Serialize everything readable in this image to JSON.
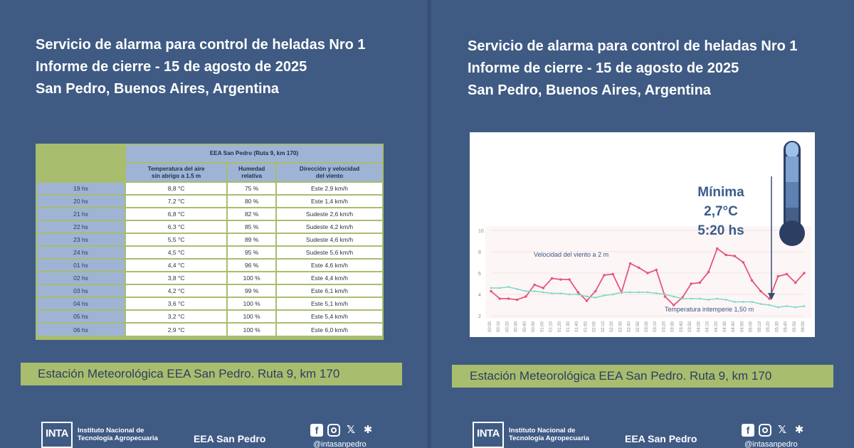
{
  "title_lines": [
    "Servicio de alarma para control de heladas Nro 1",
    "Informe de cierre - 15 de agosto de 2025",
    "San Pedro, Buenos Aires, Argentina"
  ],
  "table": {
    "group_header": "EEA San Pedro (Ruta 9, km 170)",
    "columns": [
      "Temperatura del aire sin abrigo a 1.5 m",
      "Humedad relativa",
      "Dirección y velocidad del viento"
    ],
    "col_line1": [
      "Temperatura del aire",
      "Humedad",
      "Dirección y velocidad"
    ],
    "col_line2": [
      "sin abrigo a 1.5 m",
      "relativa",
      "del viento"
    ],
    "rows": [
      {
        "hour": "19 hs",
        "temp": "8,8 °C",
        "hum": "75 %",
        "wind": "Este 2,9 km/h"
      },
      {
        "hour": "20 hs",
        "temp": "7,2 °C",
        "hum": "80 %",
        "wind": "Este 1,4 km/h"
      },
      {
        "hour": "21 hs",
        "temp": "6,8 °C",
        "hum": "82 %",
        "wind": "Sudeste 2,6 km/h"
      },
      {
        "hour": "22 hs",
        "temp": "6,3 °C",
        "hum": "85 %",
        "wind": "Sudeste 4,2 km/h"
      },
      {
        "hour": "23 hs",
        "temp": "5,5 °C",
        "hum": "89 %",
        "wind": "Sudeste 4,6 km/h"
      },
      {
        "hour": "24 hs",
        "temp": "4,5 °C",
        "hum": "95 %",
        "wind": "Sudeste 5,6 km/h"
      },
      {
        "hour": "01 hs",
        "temp": "4,4 °C",
        "hum": "96 %",
        "wind": "Este 4,6 km/h"
      },
      {
        "hour": "02 hs",
        "temp": "3,8 °C",
        "hum": "100 %",
        "wind": "Este 4,4 km/h"
      },
      {
        "hour": "03 hs",
        "temp": "4,2 °C",
        "hum": "99 %",
        "wind": "Este 6,1 km/h"
      },
      {
        "hour": "04 hs",
        "temp": "3,6 °C",
        "hum": "100 %",
        "wind": "Este 5,1 km/h"
      },
      {
        "hour": "05 hs",
        "temp": "3,2 °C",
        "hum": "100 %",
        "wind": "Este 5,4 km/h"
      },
      {
        "hour": "06 hs",
        "temp": "2,9 °C",
        "hum": "100 %",
        "wind": "Este 6,0 km/h"
      }
    ]
  },
  "station_label": "Estación Meteorológica EEA San Pedro. Ruta 9, km 170",
  "footer": {
    "institute_line1": "Instituto Nacional de",
    "institute_line2": "Tecnología Agropecuaria",
    "logo_text": "INTA",
    "eea": "EEA San Pedro",
    "handle": "@intasanpedro",
    "icons": [
      "facebook-icon",
      "instagram-icon",
      "x-icon",
      "snowflake-icon"
    ]
  },
  "chart_data": {
    "type": "line",
    "x": [
      "00:00",
      "00:10",
      "00:20",
      "00:30",
      "00:40",
      "00:50",
      "01:00",
      "01:10",
      "01:20",
      "01:30",
      "01:40",
      "01:50",
      "02:00",
      "02:10",
      "02:20",
      "02:30",
      "02:40",
      "02:50",
      "03:00",
      "03:10",
      "03:20",
      "03:30",
      "03:40",
      "03:50",
      "04:00",
      "04:10",
      "04:20",
      "04:30",
      "04:40",
      "04:50",
      "05:00",
      "05:10",
      "05:20",
      "05:30",
      "05:40",
      "05:50",
      "06:00"
    ],
    "series": [
      {
        "name": "Velocidad del viento a 2 m",
        "color": "#e8557a",
        "values": [
          4.3,
          3.6,
          3.6,
          3.5,
          3.8,
          4.9,
          4.6,
          5.5,
          5.4,
          5.4,
          4.2,
          3.4,
          4.3,
          5.8,
          5.9,
          4.2,
          6.9,
          6.5,
          6.0,
          6.3,
          3.8,
          3.0,
          3.7,
          5.0,
          5.1,
          6.1,
          8.3,
          7.7,
          7.6,
          7.0,
          5.3,
          4.3,
          3.6,
          5.7,
          5.9,
          5.1,
          6.0
        ]
      },
      {
        "name": "Temperatura intemperie 1,50 m",
        "color": "#7fd9c8",
        "values": [
          4.6,
          4.6,
          4.7,
          4.5,
          4.3,
          4.3,
          4.2,
          4.1,
          4.1,
          4.0,
          4.0,
          3.8,
          3.7,
          3.9,
          4.0,
          4.2,
          4.2,
          4.2,
          4.2,
          4.1,
          4.0,
          3.8,
          3.6,
          3.6,
          3.6,
          3.5,
          3.6,
          3.5,
          3.3,
          3.3,
          3.3,
          3.1,
          3.0,
          2.8,
          2.9,
          2.8,
          2.9
        ]
      }
    ],
    "yticks": [
      2,
      4,
      6,
      8,
      10
    ],
    "ylim": [
      2,
      10
    ],
    "annotation": {
      "line1": "Mínima",
      "line2": "2,7°C",
      "line3": "5:20 hs"
    }
  }
}
